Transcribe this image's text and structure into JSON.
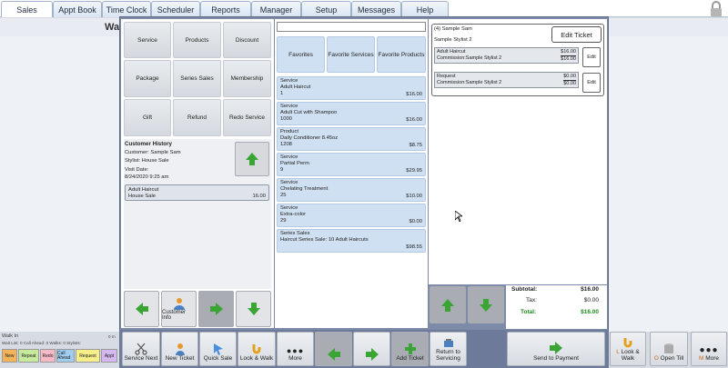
{
  "nav": {
    "tabs": [
      "Sales",
      "Appt Book",
      "Time Clock",
      "Scheduler",
      "Reports",
      "Manager",
      "Setup",
      "Messages",
      "Help"
    ]
  },
  "background": {
    "title": "Wa",
    "walk_in_label": "Walk In",
    "waitlist_line": "Wait List: 0  Call Ahead: 0  Walks: 0  Stylists:",
    "chips": [
      "New",
      "Repeat",
      "Redo",
      "Call Ahead",
      "Request",
      "Appt"
    ],
    "right_buttons": {
      "look_walk": "Look & Walk",
      "look_walk_prefix": "L",
      "open_till": "Open Till",
      "open_till_prefix": "O",
      "more": "More",
      "more_prefix": "M"
    },
    "zero_label": "0 m"
  },
  "categories": [
    "Service",
    "Products",
    "Discount",
    "Package",
    "Series Sales",
    "Membership",
    "Gift",
    "Refund",
    "Redo Service"
  ],
  "customer_history": {
    "title": "Customer History",
    "customer": "Customer: Sample Sam",
    "stylist": "Stylist: House Sale",
    "visit_label": "Visit Date:",
    "visit_date": "8/24/2020 9:25 am",
    "entry_name": "Adult Haircut",
    "entry_stylist": "House Sale",
    "entry_price": "16.00"
  },
  "left_controls": {
    "customer_info": "Customer Info"
  },
  "search": {
    "value": "",
    "placeholder": ""
  },
  "favorites": [
    "Favorites",
    "Favorite Services",
    "Favorite Products"
  ],
  "items": [
    {
      "type": "Service",
      "name": "Adult Haircut",
      "code": "1",
      "price": "$16.00"
    },
    {
      "type": "Service",
      "name": "Adult Cut with Shampoo",
      "code": "1000",
      "price": "$16.00"
    },
    {
      "type": "Product",
      "name": "Daily Conditioner 8.45oz",
      "code": "1208",
      "price": "$8.75"
    },
    {
      "type": "Service",
      "name": "Partial Perm",
      "code": "9",
      "price": "$29.95"
    },
    {
      "type": "Service",
      "name": "Chelating Treatment",
      "code": "25",
      "price": "$10.00"
    },
    {
      "type": "Service",
      "name": "Extra-color",
      "code": "29",
      "price": "$0.00"
    },
    {
      "type": "Series Sales",
      "name": "Haircut Series Sale: 10 Adult Haircuts",
      "code": "",
      "price": "$98.55"
    }
  ],
  "ticket": {
    "header": "(4) Sample Sam",
    "stylist": "Sample Stylist 2",
    "edit_ticket": "Edit Ticket",
    "lines": [
      {
        "name": "Adult Haircut",
        "commission": "Commission:Sample Stylist 2",
        "price": "$16.00",
        "sub": "$16.00",
        "edit": "Edit"
      },
      {
        "name": "Request",
        "commission": "Commission:Sample Stylist 2",
        "price": "$0.00",
        "sub": "$0.00",
        "edit": "Edit"
      }
    ],
    "subtotal_label": "Subtotal:",
    "subtotal": "$16.00",
    "tax_label": "Tax:",
    "tax": "$0.00",
    "total_label": "Total:",
    "total": "$16.00"
  },
  "bottom": [
    "Service Next",
    "New Ticket",
    "Quick Sale",
    "Look & Walk",
    "More",
    "",
    "",
    "Add Ticket",
    "Return to Servicing",
    "Send to Payment"
  ],
  "colors": {
    "accent_green": "#3aa535",
    "total_green": "#1f8a1f",
    "modal_frame": "#7d8aa8"
  }
}
